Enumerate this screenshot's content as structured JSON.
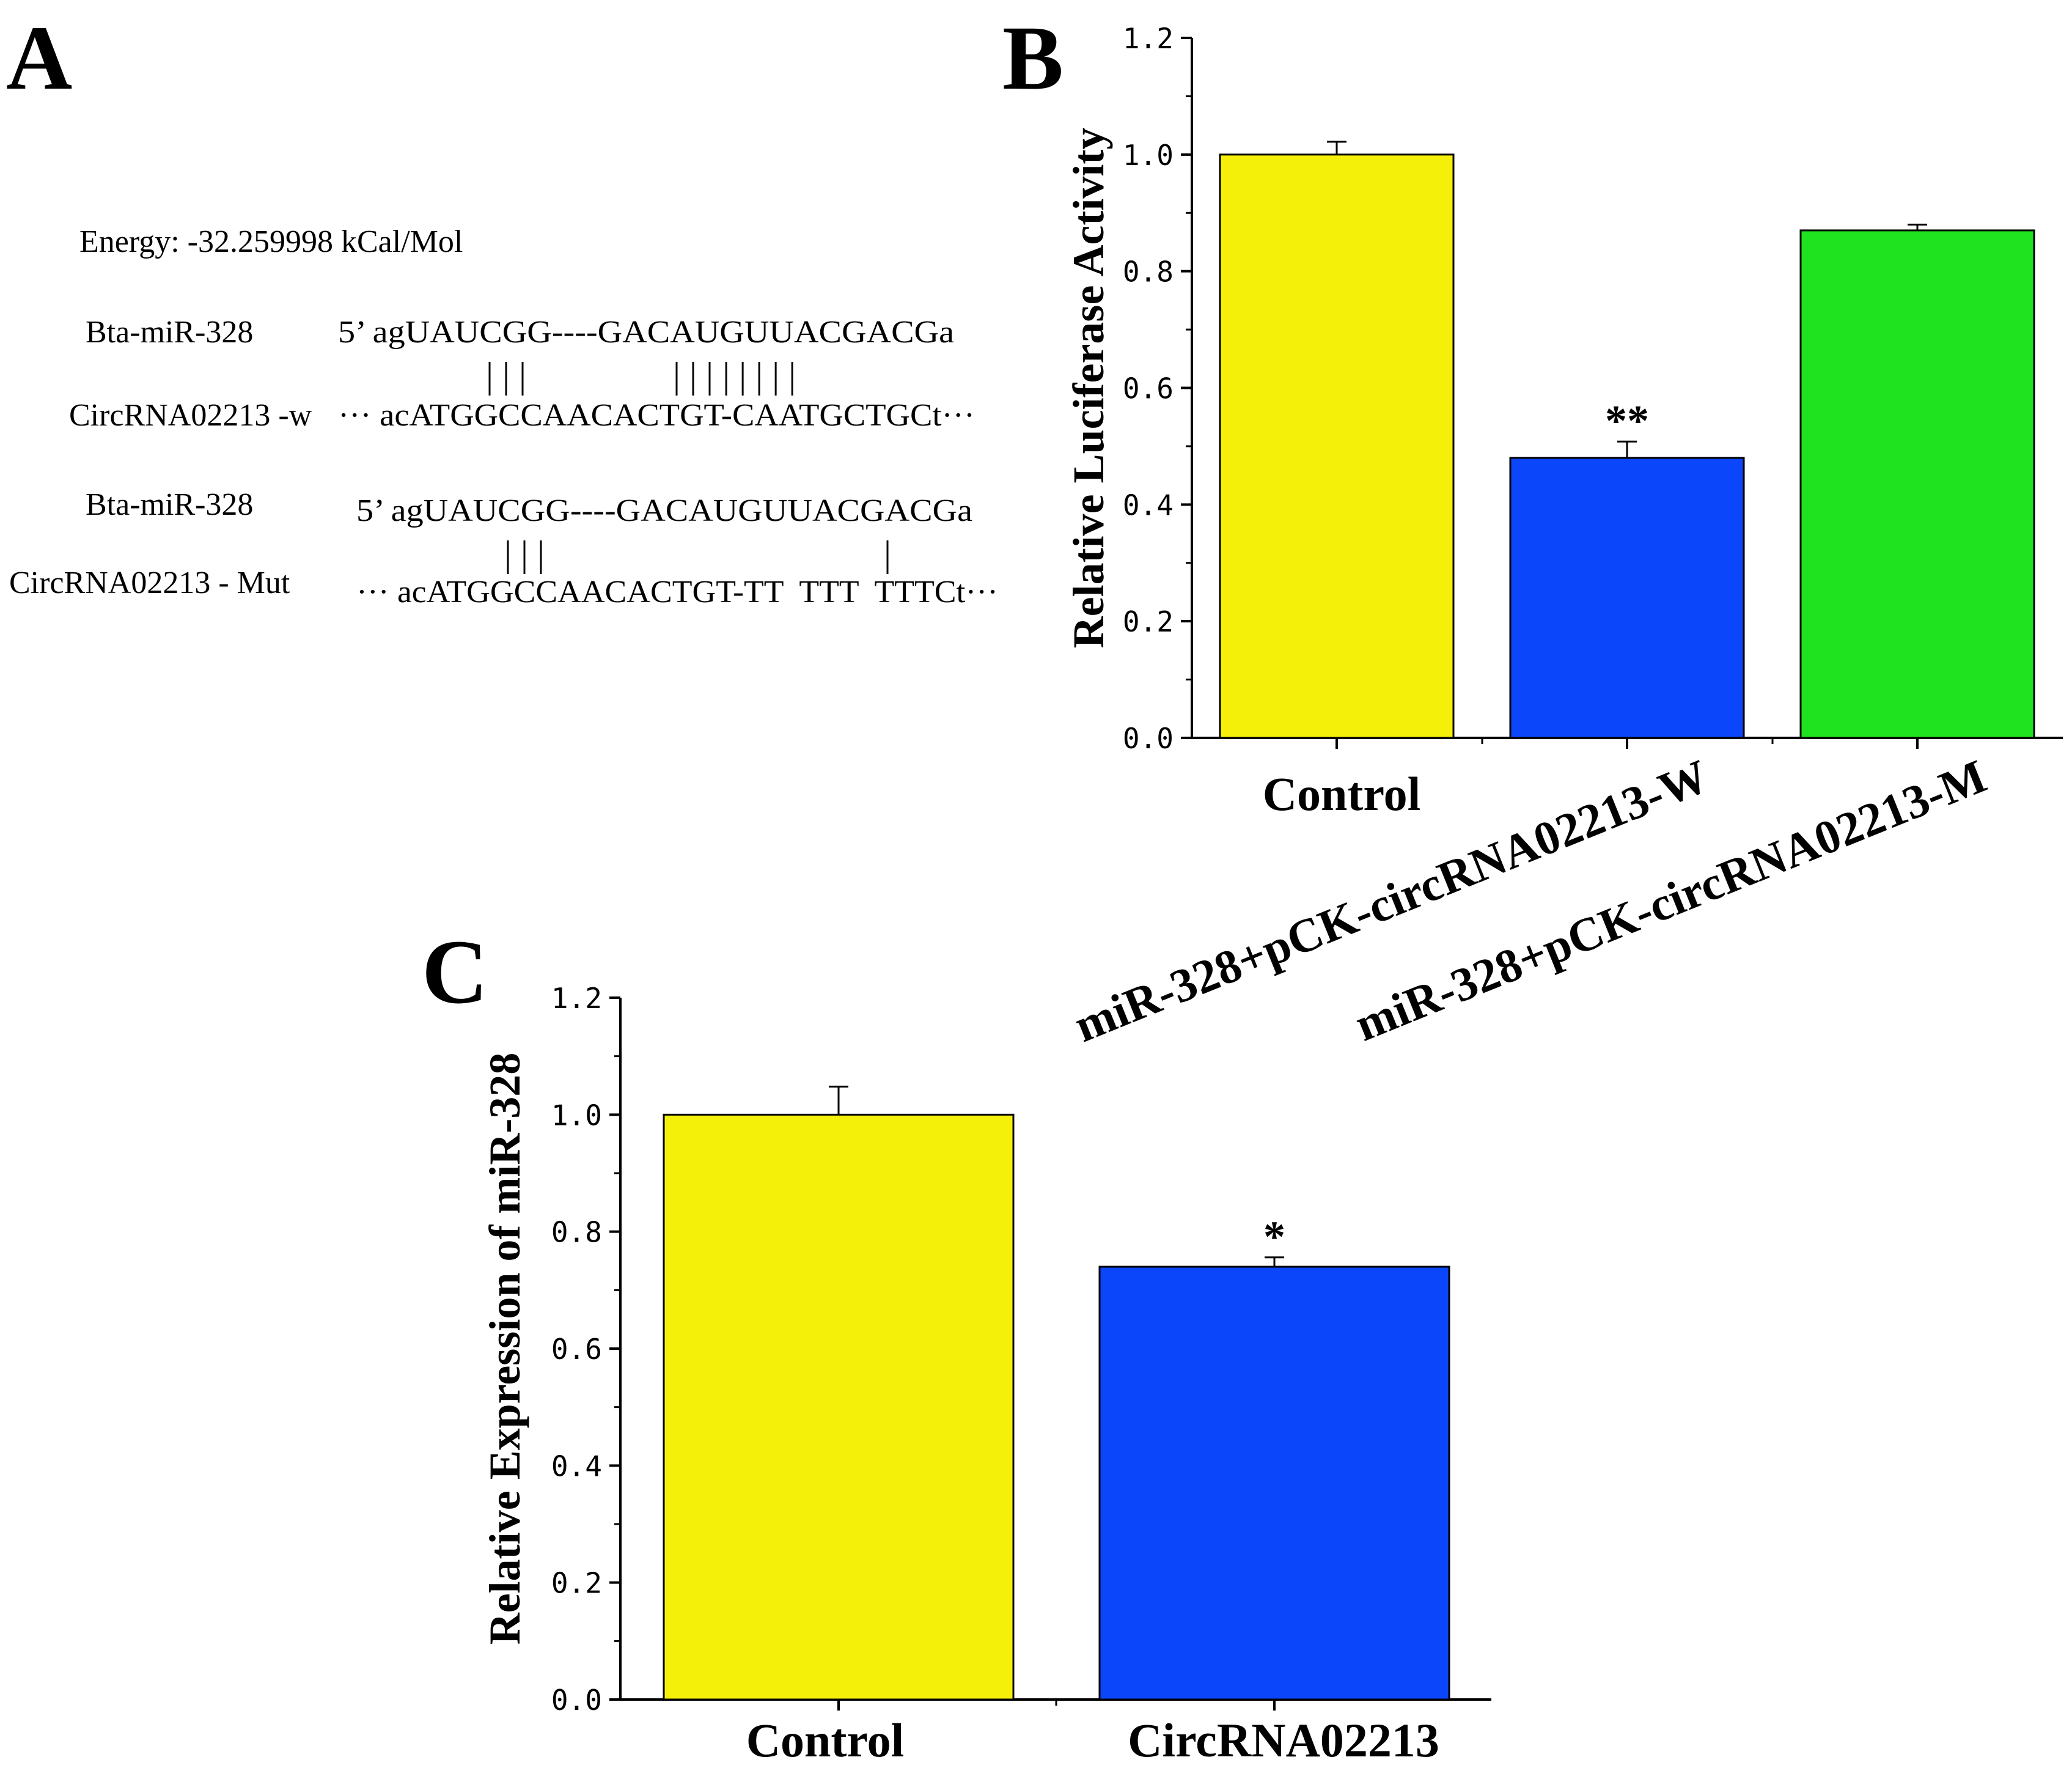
{
  "panel_a": {
    "letter": "A",
    "energy": "Energy:  -32.259998 kCal/Mol",
    "wild": {
      "mir_label": "Bta-miR-328",
      "mir_seq": "5’ agUAUCGG----GACAUGUUACGACGa",
      "bars": "| | |                | | | | | | | |",
      "target_label": "CircRNA02213 -w",
      "target_seq": "··· acATGGCCAACACTGT-CAATGCTGCt···"
    },
    "mutant": {
      "mir_label": "Bta-miR-328",
      "mir_seq": "5’ agUAUCGG----GACAUGUUACGACGa",
      "bars": "| | |                                     |",
      "target_label": "CircRNA02213 - Mut",
      "target_seq": "··· acATGGCCAACACTGT-TT  TTT  TTTCt···"
    }
  },
  "chart_data": [
    {
      "panel": "B",
      "type": "bar",
      "title": "",
      "xlabel": "",
      "ylabel": "Relative Luciferase Activity",
      "ylim": [
        0,
        1.2
      ],
      "yticks": [
        "0.0",
        "0.2",
        "0.4",
        "0.6",
        "0.8",
        "1.0",
        "1.2"
      ],
      "categories": [
        "Control",
        "miR-328+pCK-circRNA02213-W",
        "miR-328+pCK-circRNA02213-M"
      ],
      "values": [
        1.0,
        0.48,
        0.87
      ],
      "errors": [
        0.022,
        0.028,
        0.01
      ],
      "significance": [
        "",
        "**",
        ""
      ],
      "colors": [
        "#f5f00a",
        "#0b46fb",
        "#1ee31e"
      ]
    },
    {
      "panel": "C",
      "type": "bar",
      "title": "",
      "xlabel": "",
      "ylabel": "Relative Expression of miR-328",
      "ylim": [
        0,
        1.2
      ],
      "yticks": [
        "0.0",
        "0.2",
        "0.4",
        "0.6",
        "0.8",
        "1.0",
        "1.2"
      ],
      "categories": [
        "Control",
        "CircRNA02213"
      ],
      "values": [
        1.0,
        0.74
      ],
      "errors": [
        0.048,
        0.016
      ],
      "significance": [
        "",
        "*"
      ],
      "colors": [
        "#f5f00a",
        "#0b46fb"
      ]
    }
  ]
}
